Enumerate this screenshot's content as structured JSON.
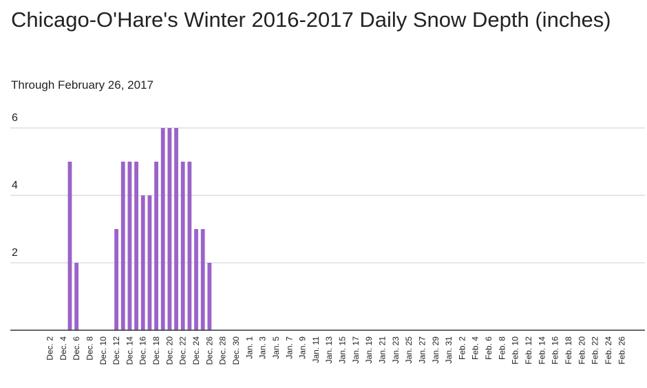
{
  "chart_data": {
    "type": "bar",
    "title": "Chicago-O'Hare's Winter 2016-2017 Daily Snow Depth (inches)",
    "subtitle": "Through February 26, 2017",
    "start_date": "Dec. 1",
    "tick_labels": [
      "Dec. 2",
      "Dec. 4",
      "Dec. 6",
      "Dec. 8",
      "Dec. 10",
      "Dec. 12",
      "Dec. 14",
      "Dec. 16",
      "Dec. 18",
      "Dec. 20",
      "Dec. 22",
      "Dec. 24",
      "Dec. 26",
      "Dec. 28",
      "Dec. 30",
      "Jan. 1",
      "Jan. 3",
      "Jan. 5",
      "Jan. 7",
      "Jan. 9",
      "Jan. 11",
      "Jan. 13",
      "Jan. 15",
      "Jan. 17",
      "Jan. 19",
      "Jan. 21",
      "Jan. 23",
      "Jan. 25",
      "Jan. 27",
      "Jan. 29",
      "Jan. 31",
      "Feb. 2",
      "Feb. 4",
      "Feb. 6",
      "Feb. 8",
      "Feb. 10",
      "Feb. 12",
      "Feb. 14",
      "Feb. 16",
      "Feb. 18",
      "Feb. 20",
      "Feb. 22",
      "Feb. 24",
      "Feb. 26"
    ],
    "y_ticks": [
      "2",
      "4",
      "6"
    ],
    "values": [
      0,
      0,
      0,
      0,
      5,
      2,
      0,
      0,
      0,
      0,
      0,
      3,
      5,
      5,
      5,
      4,
      4,
      5,
      6,
      6,
      6,
      5,
      5,
      3,
      3,
      2,
      0,
      0,
      0,
      0,
      0,
      0,
      0,
      0,
      0,
      0,
      0,
      0,
      0,
      0,
      0,
      0,
      0,
      0,
      0,
      0,
      0,
      0,
      0,
      0,
      0,
      0,
      0,
      0,
      0,
      0,
      0,
      0,
      0,
      0,
      0,
      0,
      0,
      0,
      0,
      0,
      0,
      0,
      0,
      0,
      0,
      0,
      0,
      0,
      0,
      0,
      0,
      0,
      0,
      0,
      0,
      0,
      0,
      0,
      0,
      0,
      0,
      0
    ],
    "ylim": [
      0,
      6
    ],
    "grid": true,
    "bar_color": "#9a63c9",
    "grid_color": "#cccccc",
    "axis_color": "#333333"
  }
}
